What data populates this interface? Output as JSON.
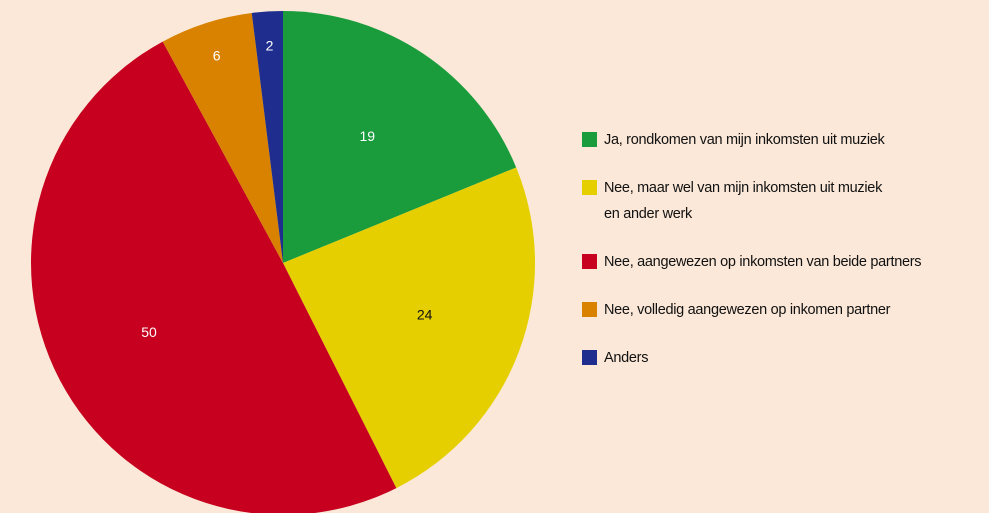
{
  "chart_data": {
    "type": "pie",
    "categories": [
      "Ja, rondkomen van mijn inkomsten uit muziek",
      "Nee, maar wel van mijn inkomsten uit muziek\nen ander werk",
      "Nee, aangewezen op inkomsten van beide partners",
      "Nee, volledig aangewezen op inkomen partner",
      "Anders"
    ],
    "values": [
      19,
      24,
      50,
      6,
      2
    ],
    "colors": [
      "#1a9c3c",
      "#e5cf00",
      "#c6001e",
      "#d98200",
      "#1f2e8e"
    ],
    "label_colors": [
      "#ffffff",
      "#111111",
      "#ffffff",
      "#ffffff",
      "#ffffff"
    ]
  }
}
